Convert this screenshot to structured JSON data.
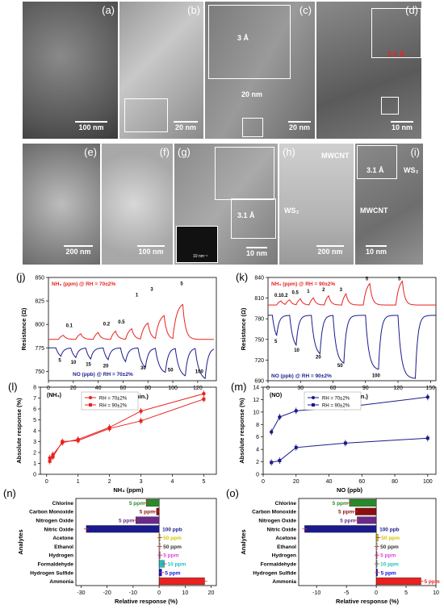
{
  "tem_row1": [
    {
      "label": "(a)",
      "scale": "100 nm"
    },
    {
      "label": "(b)",
      "scale": "20 nm"
    },
    {
      "label": "(c)",
      "scale": "20 nm",
      "spacing": "3 Å",
      "width": "20 nm"
    },
    {
      "label": "(d)",
      "scale": "10 nm",
      "spacing": "3.1 Å"
    }
  ],
  "tem_row2": [
    {
      "label": "(e)",
      "scale": "200 nm"
    },
    {
      "label": "(f)",
      "scale": "100 nm"
    },
    {
      "label": "(g)",
      "scale": "10 nm",
      "spacing": "3.1 Å",
      "saed_scale": "10 nm⁻¹"
    },
    {
      "label": "(h)",
      "scale": "200 nm",
      "mwcnt": "MWCNT",
      "ws2": "WS₂"
    },
    {
      "label": "(i)",
      "scale": "10 nm",
      "spacing": "3.1 Å",
      "mwcnt": "MWCNT",
      "ws2": "WS₂"
    }
  ],
  "colors": {
    "red": "#e8221f",
    "navy": "#1a1a8c",
    "green": "#2a8a2a",
    "darkred": "#8b1010",
    "purple": "#6a2a8a",
    "yellow": "#d4c400",
    "magenta": "#e040e0",
    "cyan": "#20c0c0",
    "blue": "#1010e0",
    "gray": "#cccccc"
  },
  "chart_data": [
    {
      "panel": "(j)",
      "type": "line",
      "xlabel": "Time (min.)",
      "ylabel": "Resistance (Ω)",
      "xlim": [
        0,
        135
      ],
      "ylim": [
        740,
        850
      ],
      "xticks": [
        0,
        20,
        40,
        60,
        80,
        100,
        120
      ],
      "yticks": [
        750,
        775,
        800,
        825,
        850
      ],
      "legend_nh3": "NH₃ (ppm) @ RH = 70±2%",
      "legend_no": "NO (ppb) @ RH = 70±2%",
      "nh3_labels": [
        "0.1",
        "0.2",
        "0.5",
        "1",
        "3",
        "5"
      ],
      "no_labels": [
        "5",
        "10",
        "15",
        "20",
        "30",
        "50",
        "100"
      ]
    },
    {
      "panel": "(k)",
      "type": "line",
      "xlabel": "Time (min.)",
      "ylabel": "Resistance (Ω)",
      "xlim": [
        0,
        155
      ],
      "ylim": [
        690,
        840
      ],
      "xticks": [
        0,
        30,
        60,
        90,
        120,
        150
      ],
      "yticks": [
        690,
        720,
        750,
        780,
        810,
        840
      ],
      "legend_nh3": "NH₃ (ppm) @ RH = 90±2%",
      "legend_no": "NO (ppb) @ RH = 90±2%",
      "nh3_labels": [
        "0.1",
        "0.2",
        "0.5",
        "1",
        "2",
        "3",
        "5",
        "5"
      ],
      "no_labels": [
        "5",
        "10",
        "20",
        "50",
        "100"
      ]
    },
    {
      "panel": "(l)",
      "type": "line",
      "title": "(NH₃)",
      "xlabel": "NH₃ (ppm)",
      "ylabel": "Absolute response (%)",
      "xlim": [
        -0.2,
        5.4
      ],
      "ylim": [
        0,
        8
      ],
      "xticks": [
        0,
        1,
        2,
        3,
        4,
        5
      ],
      "yticks": [
        0,
        1,
        2,
        3,
        4,
        5,
        6,
        7,
        8
      ],
      "series": [
        {
          "name": "RH = 70±2%",
          "x": [
            0.1,
            0.2,
            0.5,
            1,
            2,
            3,
            5
          ],
          "y": [
            1.5,
            1.8,
            2.9,
            3.2,
            4.3,
            5.8,
            7.4
          ]
        },
        {
          "name": "RH = 90±2%",
          "x": [
            0.1,
            0.2,
            0.5,
            1,
            2,
            3,
            5
          ],
          "y": [
            1.2,
            1.6,
            3.0,
            3.1,
            4.2,
            4.9,
            6.9
          ]
        }
      ]
    },
    {
      "panel": "(m)",
      "type": "line",
      "title": "(NO)",
      "xlabel": "NO (ppb)",
      "ylabel": "Absolute response (%)",
      "xlim": [
        0,
        105
      ],
      "ylim": [
        0,
        14
      ],
      "xticks": [
        0,
        20,
        40,
        60,
        80,
        100
      ],
      "yticks": [
        0,
        2,
        4,
        6,
        8,
        10,
        12,
        14
      ],
      "series": [
        {
          "name": "RH = 70±2%",
          "x": [
            5,
            10,
            20,
            50,
            100
          ],
          "y": [
            6.8,
            9.2,
            10.2,
            10.8,
            12.4
          ]
        },
        {
          "name": "RH = 90±2%",
          "x": [
            5,
            10,
            20,
            50,
            100
          ],
          "y": [
            1.9,
            2.2,
            4.3,
            5.0,
            5.8
          ]
        }
      ]
    },
    {
      "panel": "(n)",
      "type": "bar",
      "xlabel": "Relative response (%)",
      "ylabel": "Analytes",
      "xlim": [
        -32,
        22
      ],
      "xticks": [
        -30,
        -20,
        -10,
        0,
        10,
        20
      ],
      "categories": [
        "Chlorine",
        "Carbon Monoxide",
        "Nitrogen Oxide",
        "Nitric Oxide",
        "Acetone",
        "Ethanol",
        "Hydrogen",
        "Formaldehyde",
        "Hydrogen Sulfide",
        "Ammonia"
      ],
      "values": [
        -5,
        -1,
        -9,
        -28,
        0.3,
        0.2,
        0.4,
        2,
        1,
        17.5
      ],
      "conc": [
        "5 ppm",
        "5 ppm",
        "5 ppm",
        "100 ppb",
        "50 ppm",
        "50 ppm",
        "5 ppm",
        "10 ppm",
        "5 ppm",
        "5 ppm"
      ]
    },
    {
      "panel": "(o)",
      "type": "bar",
      "xlabel": "Relative response (%)",
      "ylabel": "Analytes",
      "xlim": [
        -13,
        10
      ],
      "xticks": [
        -10,
        -5,
        0,
        5,
        10
      ],
      "categories": [
        "Chlorine",
        "Carbon Monoxide",
        "Nitrogen Oxide",
        "Nitric Oxide",
        "Acetone",
        "Ethanol",
        "Hydrogen",
        "Formaldehyde",
        "Hydrogen Sulfide",
        "Ammonia"
      ],
      "values": [
        -4.5,
        -3.5,
        -3.2,
        -12,
        0.3,
        0.1,
        0.1,
        0.1,
        0.2,
        7.5
      ],
      "conc": [
        "5 ppm",
        "5 ppm",
        "5 ppm",
        "100 ppb",
        "50 ppm",
        "50 ppm",
        "5 ppm",
        "10 ppm",
        "5 ppm",
        "5 ppm"
      ]
    }
  ]
}
